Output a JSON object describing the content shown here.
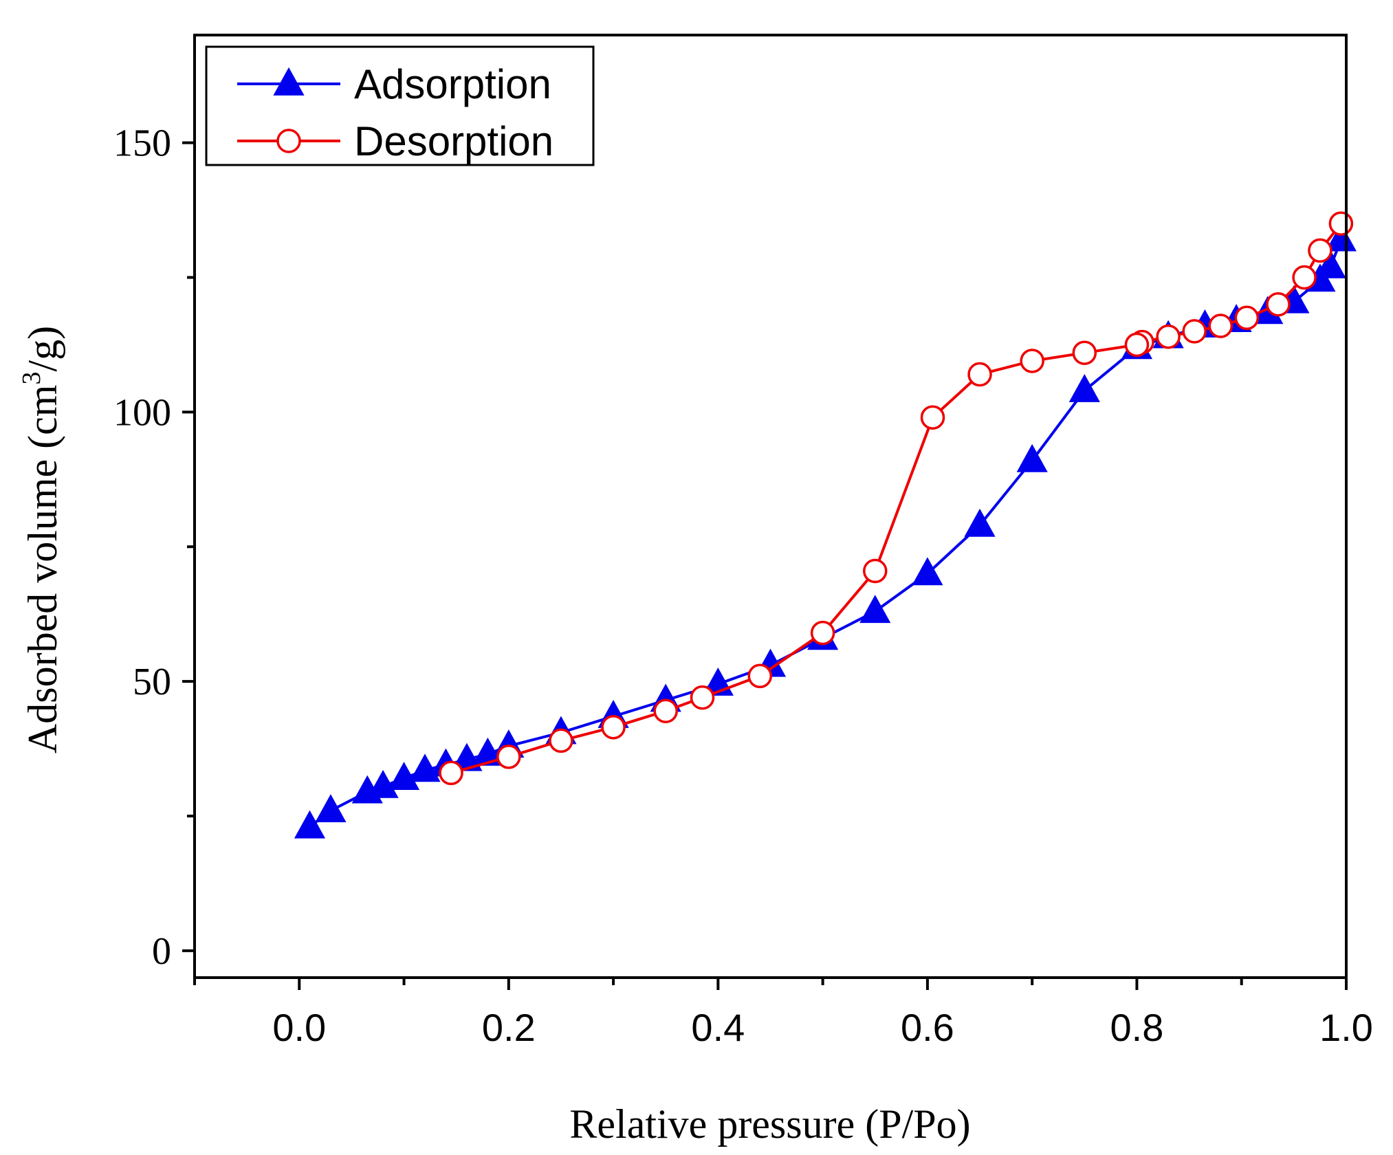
{
  "chart_data": {
    "type": "line",
    "title": "",
    "xlabel": "Relative pressure (P/Po)",
    "ylabel": {
      "prefix": "Adsorbed volume (cm",
      "superscript": "3",
      "suffix": "/g)"
    },
    "xlim": [
      -0.1,
      1.0
    ],
    "ylim": [
      -5,
      170
    ],
    "xticks": [
      0.0,
      0.2,
      0.4,
      0.6,
      0.8,
      1.0
    ],
    "xtick_labels": [
      "0.0",
      "0.2",
      "0.4",
      "0.6",
      "0.8",
      "1.0"
    ],
    "xticks_minor": [
      -0.1,
      0.1,
      0.3,
      0.5,
      0.7,
      0.9
    ],
    "yticks": [
      0,
      50,
      100,
      150
    ],
    "ytick_labels": [
      "0",
      "50",
      "100",
      "150"
    ],
    "yticks_minor": [
      25,
      75,
      125
    ],
    "grid": false,
    "legend_position": "top-left",
    "series": [
      {
        "name": "Adsorption",
        "color": "#0000ee",
        "marker": "filled-triangle",
        "x": [
          0.01,
          0.03,
          0.065,
          0.08,
          0.1,
          0.12,
          0.14,
          0.16,
          0.18,
          0.2,
          0.25,
          0.3,
          0.35,
          0.4,
          0.45,
          0.5,
          0.55,
          0.6,
          0.65,
          0.7,
          0.75,
          0.8,
          0.83,
          0.865,
          0.895,
          0.925,
          0.95,
          0.975,
          0.985,
          0.995
        ],
        "y": [
          23,
          26,
          29.5,
          30.5,
          32,
          33.5,
          34.5,
          35.5,
          36.5,
          38,
          40.5,
          43.5,
          46.5,
          49.5,
          53,
          58,
          63,
          70,
          79,
          91,
          104,
          112,
          114,
          116,
          117,
          118.5,
          120.5,
          124.5,
          127,
          132
        ]
      },
      {
        "name": "Desorption",
        "color": "#ee0000",
        "marker": "open-circle",
        "x": [
          0.995,
          0.975,
          0.96,
          0.935,
          0.905,
          0.88,
          0.855,
          0.83,
          0.805,
          0.8,
          0.75,
          0.7,
          0.65,
          0.605,
          0.55,
          0.5,
          0.44,
          0.385,
          0.35,
          0.3,
          0.25,
          0.2,
          0.145
        ],
        "y": [
          135,
          130,
          125,
          120,
          117.5,
          116,
          115,
          114,
          113,
          112.5,
          111,
          109.5,
          107,
          99,
          70.5,
          59,
          51,
          47,
          44.5,
          41.5,
          39,
          36,
          33
        ]
      }
    ]
  }
}
